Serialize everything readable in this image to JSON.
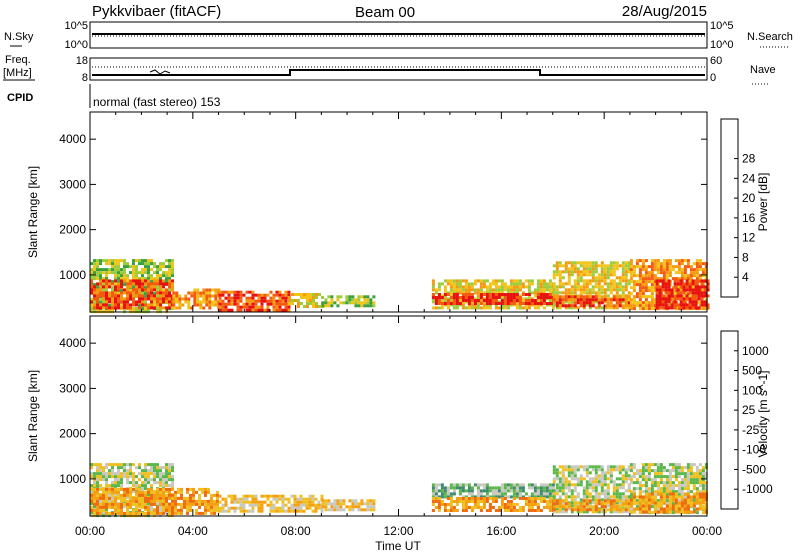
{
  "header": {
    "station": "Pykkvibaer (fitACF)",
    "beam": "Beam 00",
    "date": "28/Aug/2015"
  },
  "strip1": {
    "left_label": "N.Sky",
    "right_label": "N.Search",
    "left_ticks": [
      "10^5",
      "10^0"
    ],
    "right_ticks": [
      "10^5",
      "10^0"
    ]
  },
  "strip2": {
    "left_label_top": "Freq.",
    "left_label_unit": "[MHz]",
    "right_label": "Nave",
    "left_ticks": [
      "18",
      "8"
    ],
    "right_ticks": [
      "60",
      "0"
    ]
  },
  "cpid": {
    "label": "CPID",
    "text": "normal (fast stereo) 153"
  },
  "chart_data": [
    {
      "type": "heatmap",
      "name": "power",
      "ylabel": "Slant Range [km]",
      "ylim": [
        180,
        4600
      ],
      "yticks": [
        "1000",
        "2000",
        "3000",
        "4000"
      ],
      "xlim": [
        0,
        24
      ],
      "colorbar": {
        "label": "Power [dB]",
        "ticks": [
          "4",
          "8",
          "12",
          "16",
          "20",
          "24",
          "28"
        ],
        "colors": [
          "#1010f0",
          "#3c5ca8",
          "#3f8a6e",
          "#3aa040",
          "#9ccc3a",
          "#f2c418",
          "#f59a10",
          "#f55a10",
          "#e81010"
        ]
      },
      "bands": [
        {
          "t0": 0.0,
          "t1": 3.2,
          "r0": 200,
          "r1": 1350,
          "level": 4
        },
        {
          "t0": 0.0,
          "t1": 3.2,
          "r0": 250,
          "r1": 900,
          "level": 7
        },
        {
          "t0": 3.2,
          "t1": 5.0,
          "r0": 250,
          "r1": 700,
          "level": 6
        },
        {
          "t0": 5.0,
          "t1": 7.7,
          "r0": 250,
          "r1": 650,
          "level": 7
        },
        {
          "t0": 7.7,
          "t1": 9.0,
          "r0": 300,
          "r1": 600,
          "level": 5
        },
        {
          "t0": 9.0,
          "t1": 11.0,
          "r0": 300,
          "r1": 550,
          "level": 4
        },
        {
          "t0": 13.3,
          "t1": 18.0,
          "r0": 300,
          "r1": 900,
          "level": 5
        },
        {
          "t0": 13.3,
          "t1": 18.0,
          "r0": 350,
          "r1": 600,
          "level": 8
        },
        {
          "t0": 18.0,
          "t1": 21.0,
          "r0": 300,
          "r1": 1300,
          "level": 5
        },
        {
          "t0": 18.0,
          "t1": 21.0,
          "r0": 300,
          "r1": 550,
          "level": 7
        },
        {
          "t0": 21.0,
          "t1": 24.0,
          "r0": 250,
          "r1": 1350,
          "level": 6
        },
        {
          "t0": 22.0,
          "t1": 24.0,
          "r0": 250,
          "r1": 900,
          "level": 8
        }
      ]
    },
    {
      "type": "heatmap",
      "name": "velocity",
      "ylabel": "Slant Range [km]",
      "ylim": [
        180,
        4600
      ],
      "yticks": [
        "1000",
        "2000",
        "3000",
        "4000"
      ],
      "xlim": [
        0,
        24
      ],
      "xticks": [
        "00:00",
        "04:00",
        "08:00",
        "12:00",
        "16:00",
        "20:00",
        "00:00"
      ],
      "xlabel": "Time UT",
      "colorbar": {
        "label": "Velocity [m s^-1]",
        "ticks": [
          "1000",
          "500",
          "100",
          "25",
          "-25",
          "-100",
          "-500",
          "-1000"
        ],
        "colors": [
          "#1a3fc0",
          "#2f6fa8",
          "#3f8a6e",
          "#5ab84a",
          "#c8c8c0",
          "#f0c020",
          "#f5a010",
          "#f06a10",
          "#e81010"
        ]
      },
      "bands": [
        {
          "t0": 0.0,
          "t1": 3.2,
          "r0": 200,
          "r1": 1350,
          "level": 4
        },
        {
          "t0": 0.0,
          "t1": 5.0,
          "r0": 250,
          "r1": 800,
          "level": 6
        },
        {
          "t0": 5.0,
          "t1": 9.0,
          "r0": 300,
          "r1": 650,
          "level": 5
        },
        {
          "t0": 9.0,
          "t1": 11.0,
          "r0": 300,
          "r1": 550,
          "level": 5
        },
        {
          "t0": 13.3,
          "t1": 18.0,
          "r0": 600,
          "r1": 900,
          "level": 3
        },
        {
          "t0": 13.3,
          "t1": 18.0,
          "r0": 300,
          "r1": 600,
          "level": 6
        },
        {
          "t0": 18.0,
          "t1": 21.0,
          "r0": 300,
          "r1": 1300,
          "level": 4
        },
        {
          "t0": 18.0,
          "t1": 21.0,
          "r0": 300,
          "r1": 550,
          "level": 6
        },
        {
          "t0": 21.0,
          "t1": 24.0,
          "r0": 250,
          "r1": 1350,
          "level": 4
        },
        {
          "t0": 21.0,
          "t1": 24.0,
          "r0": 250,
          "r1": 700,
          "level": 6
        }
      ]
    }
  ]
}
